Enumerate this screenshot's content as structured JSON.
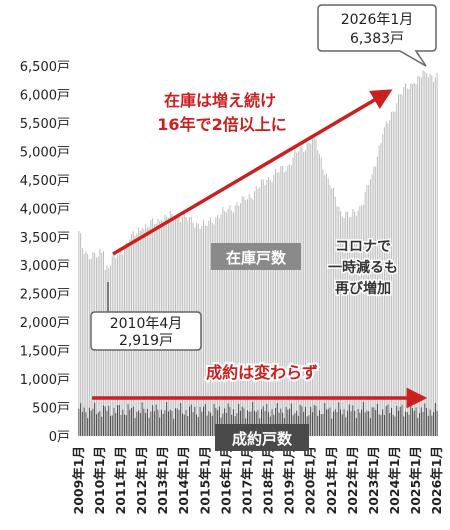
{
  "chart_data": {
    "type": "bar",
    "y_unit": "戸",
    "ylim": [
      0,
      6500
    ],
    "y_ticks": [
      {
        "value": 0,
        "label": "0戸"
      },
      {
        "value": 500,
        "label": "500戸"
      },
      {
        "value": 1000,
        "label": "1,000戸"
      },
      {
        "value": 1500,
        "label": "1,500戸"
      },
      {
        "value": 2000,
        "label": "2,000戸"
      },
      {
        "value": 2500,
        "label": "2,500戸"
      },
      {
        "value": 3000,
        "label": "3,000戸"
      },
      {
        "value": 3500,
        "label": "3,500戸"
      },
      {
        "value": 4000,
        "label": "4,000戸"
      },
      {
        "value": 4500,
        "label": "4,500戸"
      },
      {
        "value": 5000,
        "label": "5,000戸"
      },
      {
        "value": 5500,
        "label": "5,500戸"
      },
      {
        "value": 6000,
        "label": "6,000戸"
      },
      {
        "value": 6500,
        "label": "6,500戸"
      }
    ],
    "x_labels": [
      "2009年1月",
      "2010年1月",
      "2011年1月",
      "2012年1月",
      "2013年1月",
      "2014年1月",
      "2015年1月",
      "2016年1月",
      "2017年1月",
      "2018年1月",
      "2019年1月",
      "2020年1月",
      "2021年1月",
      "2022年1月",
      "2023年1月",
      "2024年1月",
      "2025年1月",
      "2026年1月"
    ],
    "grid": false,
    "series": [
      {
        "name": "在庫戸数",
        "color": "#bdbdbd",
        "anchor_points": [
          {
            "x": "2009-01",
            "y": 3600
          },
          {
            "x": "2009-03",
            "y": 3300
          },
          {
            "x": "2009-06",
            "y": 3200
          },
          {
            "x": "2009-12",
            "y": 3150
          },
          {
            "x": "2010-03",
            "y": 3250
          },
          {
            "x": "2010-04",
            "y": 2919
          },
          {
            "x": "2010-05",
            "y": 3000
          },
          {
            "x": "2010-12",
            "y": 3200
          },
          {
            "x": "2011-06",
            "y": 3450
          },
          {
            "x": "2012-01",
            "y": 3650
          },
          {
            "x": "2012-12",
            "y": 3800
          },
          {
            "x": "2013-06",
            "y": 3900
          },
          {
            "x": "2013-12",
            "y": 3850
          },
          {
            "x": "2014-06",
            "y": 3750
          },
          {
            "x": "2015-01",
            "y": 3700
          },
          {
            "x": "2015-12",
            "y": 3950
          },
          {
            "x": "2016-12",
            "y": 4150
          },
          {
            "x": "2017-12",
            "y": 4500
          },
          {
            "x": "2018-12",
            "y": 4750
          },
          {
            "x": "2019-06",
            "y": 5000
          },
          {
            "x": "2019-12",
            "y": 5150
          },
          {
            "x": "2020-03",
            "y": 5300
          },
          {
            "x": "2020-06",
            "y": 4950
          },
          {
            "x": "2020-12",
            "y": 4400
          },
          {
            "x": "2021-06",
            "y": 3950
          },
          {
            "x": "2021-12",
            "y": 3850
          },
          {
            "x": "2022-06",
            "y": 4050
          },
          {
            "x": "2022-12",
            "y": 4600
          },
          {
            "x": "2023-06",
            "y": 5300
          },
          {
            "x": "2023-12",
            "y": 5700
          },
          {
            "x": "2024-03",
            "y": 6000
          },
          {
            "x": "2024-12",
            "y": 6200
          },
          {
            "x": "2025-06",
            "y": 6400
          },
          {
            "x": "2025-12",
            "y": 6300
          },
          {
            "x": "2026-01",
            "y": 6383
          }
        ]
      },
      {
        "name": "成約戸数",
        "color": "#4a4a4a",
        "approx_range": [
          300,
          600
        ]
      }
    ]
  },
  "annotations": {
    "peak_callout": {
      "line1": "2026年1月",
      "line2": "6,383戸"
    },
    "low_callout": {
      "line1": "2010年4月",
      "line2": "2,919戸"
    },
    "trend_text": {
      "line1": "在庫は増え続け",
      "line2": "16年で2倍以上に"
    },
    "flat_text": "成約は変わらず",
    "inventory_label": "在庫戸数",
    "contracts_label": "成約戸数",
    "covid_note": {
      "line1": "コロナで",
      "line2": "一時減るも",
      "line3": "再び増加"
    }
  },
  "colors": {
    "inventory_bar": "#bdbdbd",
    "contract_bar": "#4a4a4a",
    "accent_red": "#cc1f1f",
    "callout_border": "#666666",
    "label_box": "#8a8a8a"
  }
}
